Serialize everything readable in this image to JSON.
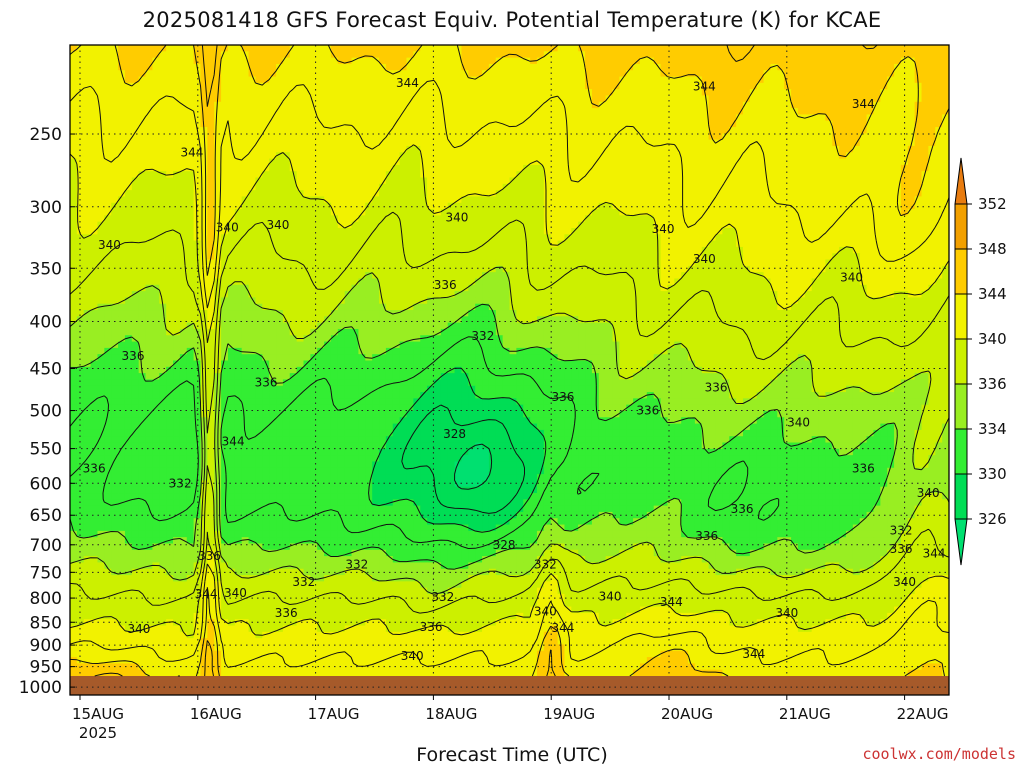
{
  "page": {
    "title": "2025081418 GFS Forecast Equiv. Potential Temperature (K) for KCAE",
    "x_axis_title": "Forecast Time (UTC)",
    "watermark": "coolwx.com/models"
  },
  "chart_data": {
    "type": "heatmap",
    "title": "2025081418 GFS Forecast Equiv. Potential Temperature (K) for KCAE",
    "xlabel": "Forecast Time (UTC)",
    "ylabel": "",
    "x_ticks": [
      "15AUG",
      "16AUG",
      "17AUG",
      "18AUG",
      "19AUG",
      "20AUG",
      "21AUG",
      "22AUG"
    ],
    "x_year_label": "2025",
    "y_ticks": [
      250,
      300,
      350,
      400,
      450,
      500,
      550,
      600,
      650,
      700,
      750,
      800,
      850,
      900,
      950,
      1000
    ],
    "y_scale": "log-pressure",
    "y_range": [
      1020,
      200
    ],
    "colorbar": {
      "ticks": [
        326,
        330,
        334,
        336,
        340,
        344,
        348,
        352
      ],
      "colors": [
        "#00dd55",
        "#33ee33",
        "#99ee22",
        "#ccf000",
        "#f2f200",
        "#ffcc00",
        "#f2a000"
      ],
      "top_color": "#e87c10",
      "bottom_color": "#00e070"
    },
    "contour_labels": [
      {
        "text": "344",
        "t": 2.78,
        "p": 220
      },
      {
        "text": "344",
        "t": 5.3,
        "p": 222
      },
      {
        "text": "344",
        "t": 6.65,
        "p": 232
      },
      {
        "text": "344",
        "t": 0.95,
        "p": 262
      },
      {
        "text": "340",
        "t": 0.25,
        "p": 330
      },
      {
        "text": "340",
        "t": 1.25,
        "p": 316
      },
      {
        "text": "340",
        "t": 1.68,
        "p": 314
      },
      {
        "text": "340",
        "t": 3.2,
        "p": 308
      },
      {
        "text": "340",
        "t": 4.95,
        "p": 317
      },
      {
        "text": "340",
        "t": 5.3,
        "p": 342
      },
      {
        "text": "340",
        "t": 6.55,
        "p": 358
      },
      {
        "text": "336",
        "t": 3.1,
        "p": 365
      },
      {
        "text": "332",
        "t": 3.42,
        "p": 415
      },
      {
        "text": "336",
        "t": 0.45,
        "p": 436
      },
      {
        "text": "336",
        "t": 1.58,
        "p": 466
      },
      {
        "text": "336",
        "t": 4.1,
        "p": 483
      },
      {
        "text": "336",
        "t": 4.82,
        "p": 500
      },
      {
        "text": "336",
        "t": 5.4,
        "p": 472
      },
      {
        "text": "340",
        "t": 6.1,
        "p": 515
      },
      {
        "text": "328",
        "t": 3.18,
        "p": 530
      },
      {
        "text": "344",
        "t": 1.3,
        "p": 540
      },
      {
        "text": "336",
        "t": 0.12,
        "p": 578
      },
      {
        "text": "332",
        "t": 0.85,
        "p": 600
      },
      {
        "text": "336",
        "t": 6.65,
        "p": 578
      },
      {
        "text": "340",
        "t": 7.2,
        "p": 615
      },
      {
        "text": "336",
        "t": 5.62,
        "p": 640
      },
      {
        "text": "336",
        "t": 5.32,
        "p": 685
      },
      {
        "text": "332",
        "t": 6.97,
        "p": 675
      },
      {
        "text": "336",
        "t": 6.97,
        "p": 707
      },
      {
        "text": "344",
        "t": 7.25,
        "p": 715
      },
      {
        "text": "328",
        "t": 3.6,
        "p": 700
      },
      {
        "text": "336",
        "t": 1.1,
        "p": 720
      },
      {
        "text": "332",
        "t": 2.35,
        "p": 735
      },
      {
        "text": "332",
        "t": 3.95,
        "p": 735
      },
      {
        "text": "332",
        "t": 1.9,
        "p": 768
      },
      {
        "text": "340",
        "t": 7.0,
        "p": 768
      },
      {
        "text": "344",
        "t": 1.07,
        "p": 792
      },
      {
        "text": "340",
        "t": 1.32,
        "p": 790
      },
      {
        "text": "332",
        "t": 3.08,
        "p": 798
      },
      {
        "text": "340",
        "t": 4.5,
        "p": 797
      },
      {
        "text": "344",
        "t": 5.02,
        "p": 808
      },
      {
        "text": "340",
        "t": 6.0,
        "p": 830
      },
      {
        "text": "336",
        "t": 1.75,
        "p": 830
      },
      {
        "text": "340",
        "t": 3.95,
        "p": 827
      },
      {
        "text": "340",
        "t": 0.5,
        "p": 865
      },
      {
        "text": "336",
        "t": 2.98,
        "p": 860
      },
      {
        "text": "344",
        "t": 4.1,
        "p": 862
      },
      {
        "text": "340",
        "t": 2.82,
        "p": 925
      },
      {
        "text": "344",
        "t": 5.72,
        "p": 920
      }
    ]
  }
}
